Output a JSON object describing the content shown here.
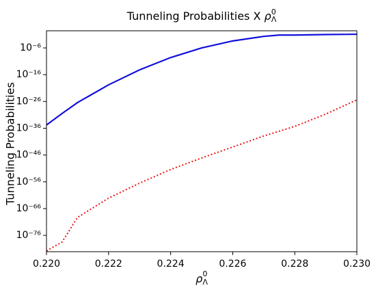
{
  "chart_data": {
    "type": "line",
    "title": "Tunneling Probabilities X",
    "symbol": {
      "base": "ρ",
      "superscript": "0",
      "subscript": "Λ"
    },
    "y_label": "Tunneling Probabilities",
    "log_y": true,
    "x": [
      0.22,
      0.2205,
      0.221,
      0.222,
      0.223,
      0.224,
      0.225,
      0.226,
      0.227,
      0.2275,
      0.228,
      0.229,
      0.23
    ],
    "series": [
      {
        "color": "#1010dd",
        "style": "solid",
        "values": [
          1.6e-35,
          3.2e-31,
          4e-27,
          1.6e-20,
          6.3e-15,
          2.5e-10,
          1e-06,
          0.0004,
          0.02,
          0.063,
          0.063,
          0.1,
          0.126
        ]
      },
      {
        "color": "#ee1111",
        "style": "dotted",
        "values": [
          1.6e-82,
          3.2e-79,
          5e-70,
          8e-63,
          3.2e-57,
          4e-52,
          8e-48,
          1e-43,
          1.3e-39,
          8e-38,
          5e-36,
          2e-31,
          4e-26
        ]
      }
    ],
    "xlim": [
      0.22,
      0.23
    ],
    "xticks": [
      {
        "value": 0.22,
        "label": "0.220"
      },
      0.222,
      0.224,
      0.226,
      0.228,
      {
        "value": 0.23,
        "label": "0.230"
      }
    ],
    "ylim": [
      8e-83,
      2.5
    ],
    "yticks": [
      {
        "value": 1e-06,
        "label": "10⁻⁶"
      },
      {
        "value": 1e-16,
        "label": "10⁻¹⁶"
      },
      {
        "value": 1e-26,
        "label": "10⁻²⁶"
      },
      {
        "value": 1e-36,
        "label": "10⁻³⁶"
      },
      {
        "value": 1e-46,
        "label": "10⁻⁴⁶"
      },
      {
        "value": 1e-56,
        "label": "10⁻⁵⁶"
      },
      {
        "value": 1e-66,
        "label": "10⁻⁶⁶"
      },
      {
        "value": 1e-76,
        "label": "10⁻⁷⁶"
      }
    ]
  }
}
